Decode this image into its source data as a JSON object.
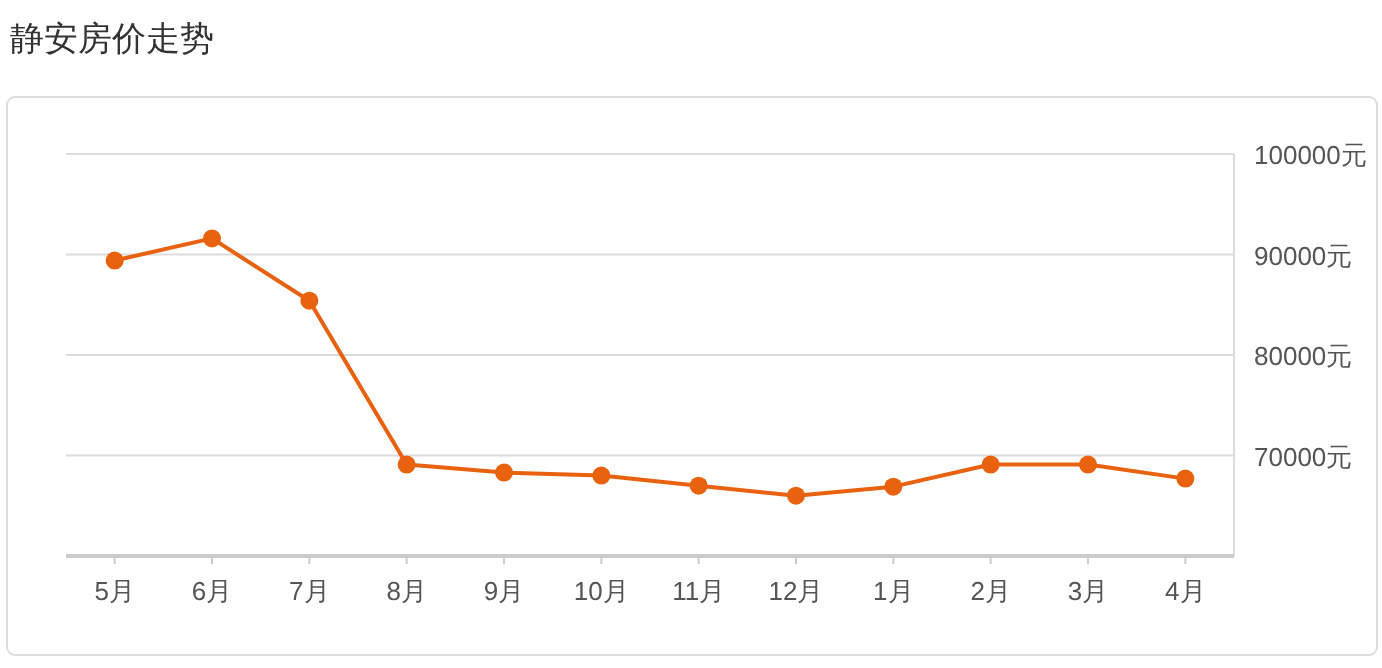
{
  "chart_data": {
    "type": "line",
    "title": "静安房价走势",
    "categories": [
      "5月",
      "6月",
      "7月",
      "8月",
      "9月",
      "10月",
      "11月",
      "12月",
      "1月",
      "2月",
      "3月",
      "4月"
    ],
    "series": [
      {
        "color": "#e8620f",
        "values": [
          89400,
          91600,
          85400,
          69100,
          68300,
          68000,
          67000,
          66000,
          66900,
          69100,
          69100,
          67700
        ]
      }
    ],
    "ylim": [
      60000,
      100000
    ],
    "yticks": [
      {
        "value": 60000,
        "label": null
      },
      {
        "value": 70000,
        "label": "70000元"
      },
      {
        "value": 80000,
        "label": "80000元"
      },
      {
        "value": 90000,
        "label": "90000元"
      },
      {
        "value": 100000,
        "label": "100000元"
      }
    ],
    "grid": "y",
    "marker": "circle",
    "line_style": "solid"
  }
}
